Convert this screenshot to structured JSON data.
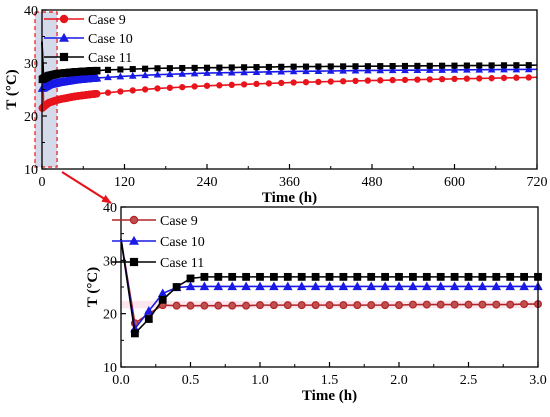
{
  "chart_data": [
    {
      "type": "line",
      "xlabel": "Time (h)",
      "ylabel": "T (°C)",
      "xlim": [
        0,
        720
      ],
      "ylim": [
        10,
        40
      ],
      "xticks": [
        "0",
        "120",
        "240",
        "360",
        "480",
        "600",
        "720"
      ],
      "yticks": [
        "10",
        "20",
        "30",
        "40"
      ],
      "legend": "top-left",
      "grid": false,
      "highlight_region_x": [
        0,
        3
      ],
      "series": [
        {
          "name": "Case 9",
          "color": "#e8141c",
          "marker": "circle",
          "x": [
            0,
            0.5,
            3,
            10,
            24,
            48,
            72,
            96,
            120,
            168,
            240,
            360,
            480,
            600,
            720
          ],
          "y": [
            34,
            21.5,
            21.8,
            22.5,
            23.1,
            23.7,
            24.1,
            24.4,
            24.7,
            25.2,
            25.7,
            26.3,
            26.7,
            27.0,
            27.3
          ]
        },
        {
          "name": "Case 10",
          "color": "#1a1ae6",
          "marker": "triangle",
          "x": [
            0,
            0.5,
            3,
            10,
            24,
            48,
            72,
            96,
            120,
            168,
            240,
            360,
            480,
            600,
            720
          ],
          "y": [
            34,
            25.2,
            25.4,
            25.9,
            26.3,
            26.8,
            27.1,
            27.3,
            27.5,
            27.8,
            28.1,
            28.4,
            28.6,
            28.7,
            28.8
          ]
        },
        {
          "name": "Case 11",
          "color": "#000000",
          "marker": "square",
          "x": [
            0,
            0.5,
            3,
            10,
            24,
            48,
            72,
            96,
            120,
            168,
            240,
            360,
            480,
            600,
            720
          ],
          "y": [
            34,
            26.9,
            27.1,
            27.6,
            28.0,
            28.3,
            28.5,
            28.7,
            28.8,
            29.0,
            29.1,
            29.3,
            29.4,
            29.5,
            29.6
          ]
        }
      ]
    },
    {
      "type": "line",
      "xlabel": "Time (h)",
      "ylabel": "T (°C)",
      "xlim": [
        0,
        3
      ],
      "ylim": [
        10,
        40
      ],
      "xticks": [
        "0.0",
        "0.5",
        "1.0",
        "1.5",
        "2.0",
        "2.5",
        "3.0"
      ],
      "yticks": [
        "10",
        "20",
        "30",
        "40"
      ],
      "legend": "top-left",
      "grid": false,
      "series": [
        {
          "name": "Case 9",
          "color": "#b1252a",
          "marker": "circle",
          "x": [
            0,
            0.1,
            0.2,
            0.3,
            0.4,
            0.5,
            0.6,
            0.7,
            0.8,
            0.9,
            1.0,
            1.1,
            1.2,
            1.3,
            1.4,
            1.5,
            1.6,
            1.7,
            1.8,
            1.9,
            2.0,
            2.1,
            2.2,
            2.3,
            2.4,
            2.5,
            2.6,
            2.7,
            2.8,
            2.9,
            3.0
          ],
          "y": [
            34,
            18.2,
            20.0,
            21.6,
            21.5,
            21.5,
            21.5,
            21.5,
            21.5,
            21.5,
            21.6,
            21.6,
            21.6,
            21.6,
            21.6,
            21.6,
            21.6,
            21.6,
            21.6,
            21.6,
            21.6,
            21.7,
            21.7,
            21.7,
            21.7,
            21.7,
            21.7,
            21.7,
            21.7,
            21.8,
            21.8
          ]
        },
        {
          "name": "Case 10",
          "color": "#1a1ae6",
          "marker": "triangle",
          "x": [
            0,
            0.1,
            0.2,
            0.3,
            0.4,
            0.5,
            0.6,
            0.7,
            0.8,
            0.9,
            1.0,
            1.1,
            1.2,
            1.3,
            1.4,
            1.5,
            1.6,
            1.7,
            1.8,
            1.9,
            2.0,
            2.1,
            2.2,
            2.3,
            2.4,
            2.5,
            2.6,
            2.7,
            2.8,
            2.9,
            3.0
          ],
          "y": [
            34,
            17.2,
            20.5,
            23.8,
            24.9,
            25.1,
            25.1,
            25.1,
            25.1,
            25.1,
            25.1,
            25.1,
            25.1,
            25.1,
            25.1,
            25.1,
            25.1,
            25.1,
            25.1,
            25.1,
            25.1,
            25.1,
            25.1,
            25.1,
            25.1,
            25.1,
            25.1,
            25.1,
            25.1,
            25.1,
            25.1
          ]
        },
        {
          "name": "Case 11",
          "color": "#000000",
          "marker": "square",
          "x": [
            0,
            0.1,
            0.2,
            0.3,
            0.4,
            0.5,
            0.6,
            0.7,
            0.8,
            0.9,
            1.0,
            1.1,
            1.2,
            1.3,
            1.4,
            1.5,
            1.6,
            1.7,
            1.8,
            1.9,
            2.0,
            2.1,
            2.2,
            2.3,
            2.4,
            2.5,
            2.6,
            2.7,
            2.8,
            2.9,
            3.0
          ],
          "y": [
            34,
            16.3,
            19.0,
            22.6,
            25.0,
            26.6,
            26.9,
            26.9,
            26.9,
            26.9,
            26.9,
            26.9,
            26.9,
            26.9,
            26.9,
            26.9,
            26.9,
            26.9,
            26.9,
            26.9,
            26.9,
            26.9,
            26.9,
            26.9,
            26.9,
            26.9,
            26.9,
            26.9,
            26.9,
            26.9,
            26.9
          ]
        }
      ]
    }
  ]
}
